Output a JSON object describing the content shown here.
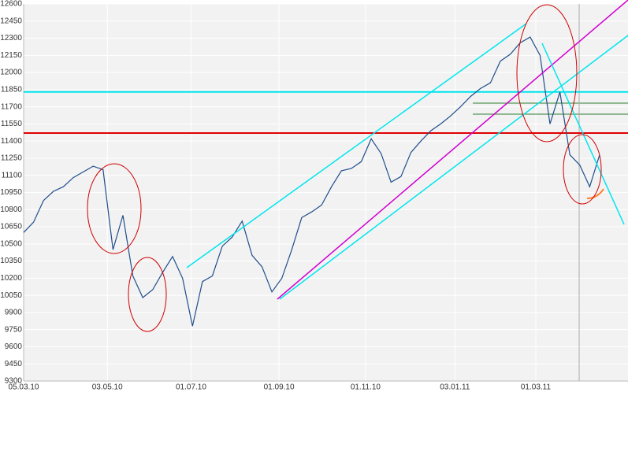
{
  "chart_data": {
    "type": "line",
    "x": [
      "2010-03-05",
      "2010-03-12",
      "2010-03-19",
      "2010-03-26",
      "2010-04-02",
      "2010-04-09",
      "2010-04-16",
      "2010-04-23",
      "2010-04-30",
      "2010-05-07",
      "2010-05-14",
      "2010-05-21",
      "2010-05-28",
      "2010-06-04",
      "2010-06-11",
      "2010-06-18",
      "2010-06-25",
      "2010-07-02",
      "2010-07-09",
      "2010-07-16",
      "2010-07-23",
      "2010-07-30",
      "2010-08-06",
      "2010-08-13",
      "2010-08-20",
      "2010-08-27",
      "2010-09-03",
      "2010-09-10",
      "2010-09-17",
      "2010-09-24",
      "2010-10-01",
      "2010-10-08",
      "2010-10-15",
      "2010-10-22",
      "2010-10-29",
      "2010-11-05",
      "2010-11-12",
      "2010-11-19",
      "2010-11-26",
      "2010-12-03",
      "2010-12-10",
      "2010-12-17",
      "2010-12-24",
      "2010-12-31",
      "2011-01-07",
      "2011-01-14",
      "2011-01-21",
      "2011-01-28",
      "2011-02-04",
      "2011-02-11",
      "2011-02-18",
      "2011-02-25",
      "2011-03-04",
      "2011-03-11",
      "2011-03-18",
      "2011-03-25",
      "2011-04-01",
      "2011-04-08",
      "2011-04-15"
    ],
    "series": [
      {
        "color": "#1f4e8c",
        "values": [
          10600,
          10690,
          10880,
          10960,
          11000,
          11080,
          11130,
          11180,
          11150,
          10450,
          10750,
          10220,
          10030,
          10100,
          10250,
          10390,
          10200,
          9780,
          10170,
          10220,
          10480,
          10560,
          10700,
          10400,
          10300,
          10080,
          10200,
          10450,
          10730,
          10780,
          10840,
          11000,
          11140,
          11160,
          11220,
          11420,
          11290,
          11040,
          11090,
          11300,
          11400,
          11490,
          11550,
          11620,
          11700,
          11790,
          11860,
          11910,
          12100,
          12160,
          12260,
          12310,
          12150,
          11550,
          11830,
          11280,
          11190,
          11000,
          11280
        ]
      }
    ],
    "xlim": [
      "2010-03-05",
      "2011-05-05"
    ],
    "xticks": [
      {
        "value": "2010-03-05",
        "label": "05.03.10"
      },
      {
        "value": "2010-05-03",
        "label": "03.05.10"
      },
      {
        "value": "2010-07-01",
        "label": "01.07.10"
      },
      {
        "value": "2010-09-01",
        "label": "01.09.10"
      },
      {
        "value": "2010-11-01",
        "label": "01.11.10"
      },
      {
        "value": "2011-01-03",
        "label": "03.01.11"
      },
      {
        "value": "2011-03-01",
        "label": "01.03.11"
      }
    ],
    "ylim": [
      9300,
      12600
    ],
    "yticks": [
      9300,
      9450,
      9600,
      9750,
      9900,
      10050,
      10200,
      10350,
      10500,
      10650,
      10800,
      10950,
      11100,
      11250,
      11400,
      11550,
      11700,
      11850,
      12000,
      12150,
      12300,
      12450,
      12600
    ],
    "grid": true,
    "hlines": [
      {
        "value": 11830,
        "color": "#00e5ee"
      },
      {
        "value": 11470,
        "color": "#e00000"
      }
    ]
  }
}
